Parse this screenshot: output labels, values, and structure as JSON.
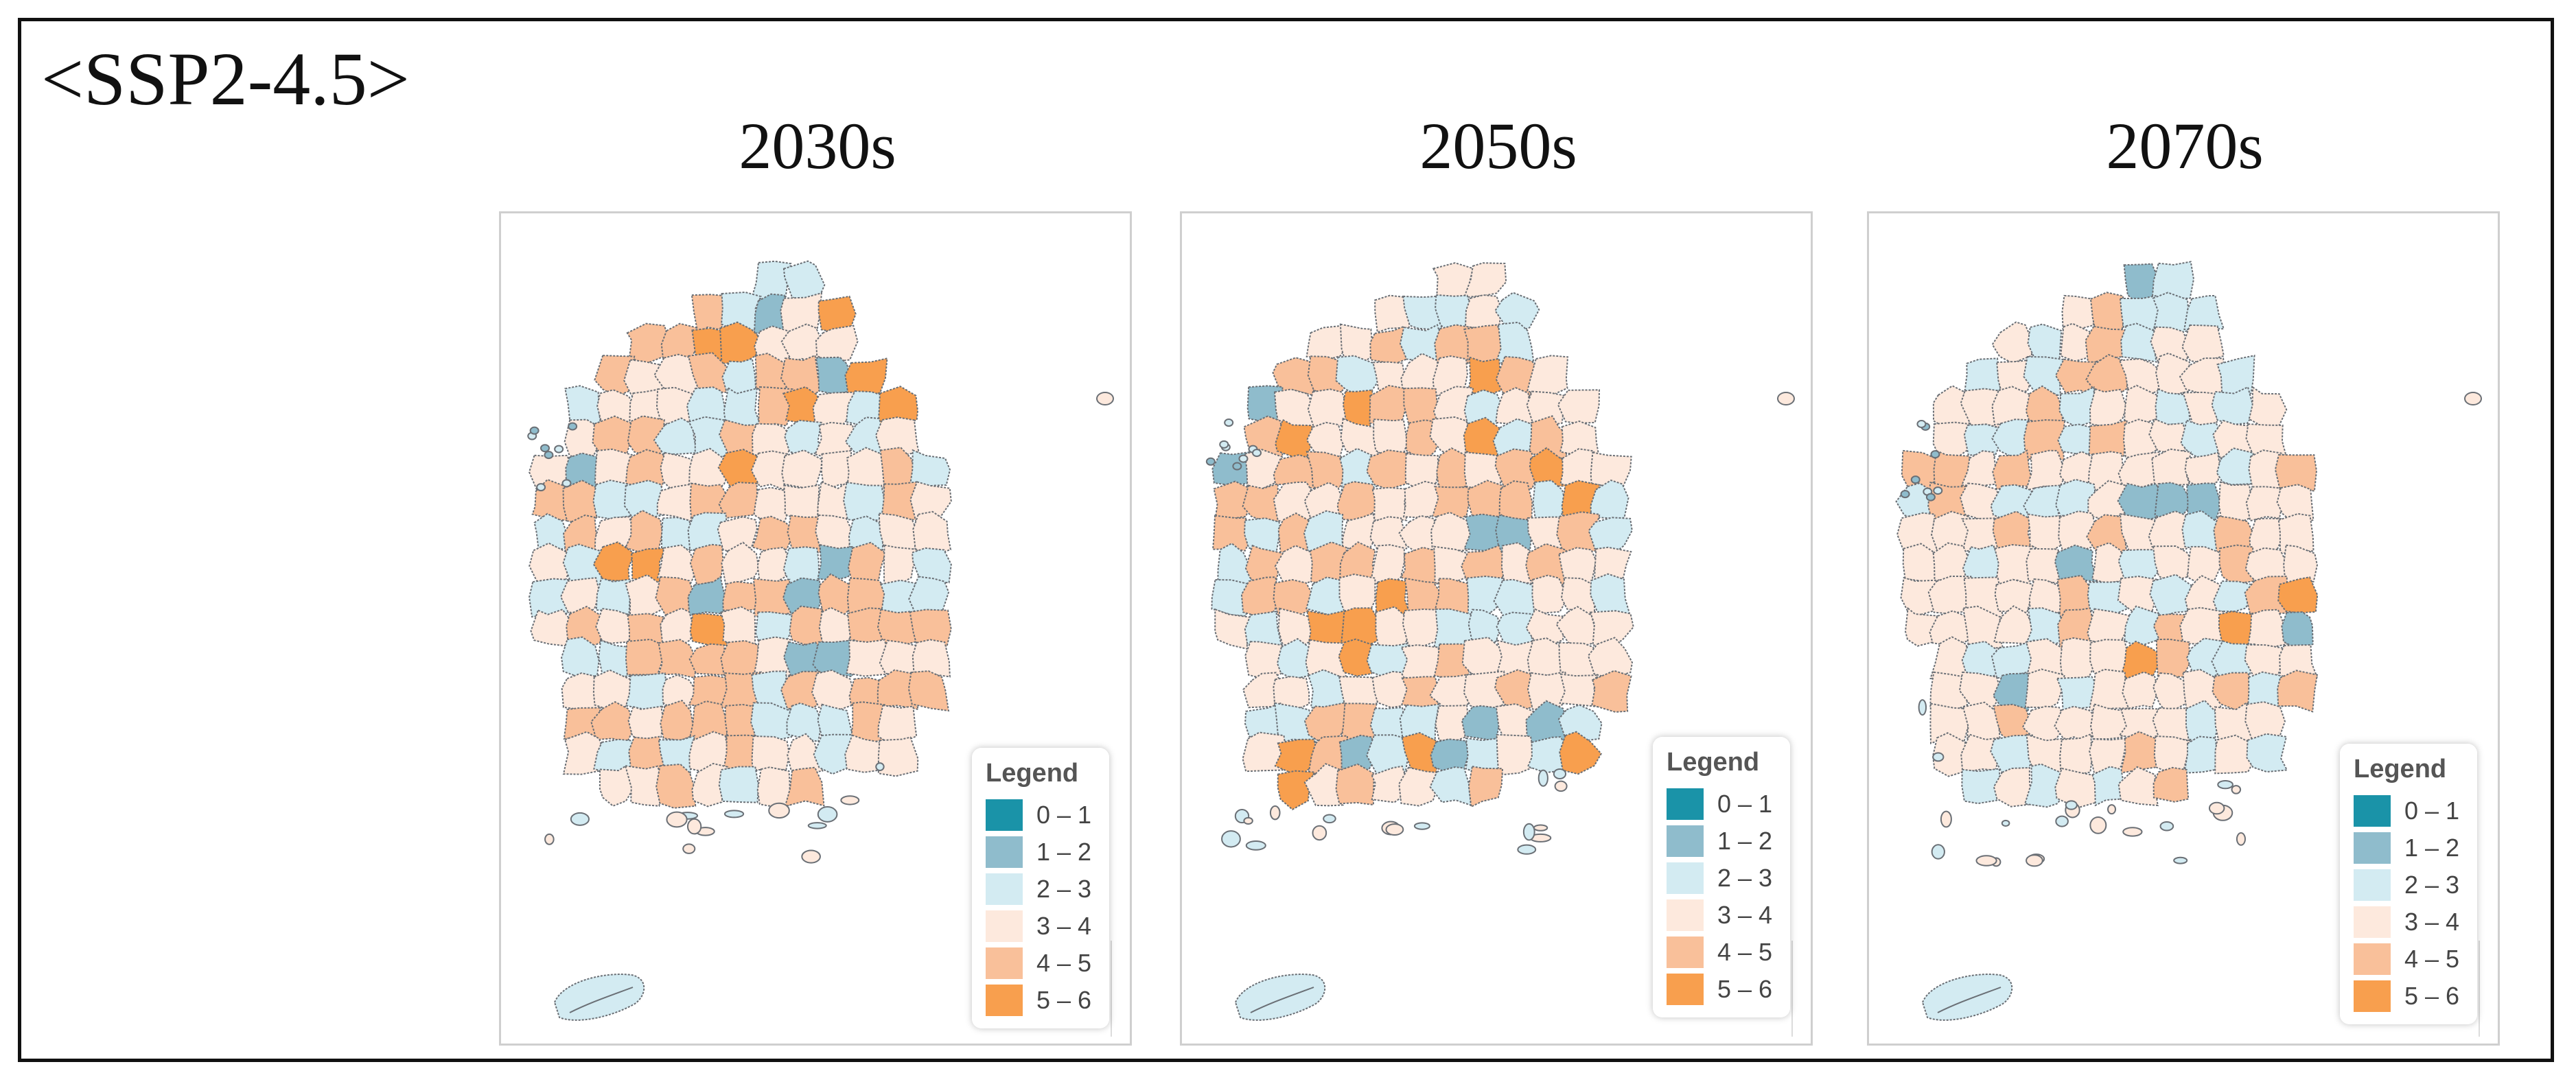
{
  "scenario_label": "<SSP2-4.5>",
  "colors": {
    "0-1": "#1a93a8",
    "1-2": "#8fbccc",
    "2-3": "#d3ebf2",
    "3-4": "#fde9dd",
    "4-5": "#f9c09a",
    "5-6": "#f89f4e",
    "border": "#6a6f75"
  },
  "legend": {
    "title": "Legend",
    "classes": [
      {
        "label": "0 – 1",
        "color_key": "0-1"
      },
      {
        "label": "1 – 2",
        "color_key": "1-2"
      },
      {
        "label": "2 – 3",
        "color_key": "2-3"
      },
      {
        "label": "3 – 4",
        "color_key": "3-4"
      },
      {
        "label": "4 – 5",
        "color_key": "4-5"
      },
      {
        "label": "5 – 6",
        "color_key": "5-6"
      }
    ]
  },
  "panels": [
    {
      "period": "2030s",
      "dominant_classes": [
        "3-4",
        "4-5",
        "2-3"
      ],
      "hotspot_classes": [
        "5-6",
        "1-2"
      ]
    },
    {
      "period": "2050s",
      "dominant_classes": [
        "3-4",
        "4-5",
        "2-3"
      ],
      "hotspot_classes": [
        "5-6",
        "1-2"
      ]
    },
    {
      "period": "2070s",
      "dominant_classes": [
        "3-4",
        "2-3",
        "4-5"
      ],
      "hotspot_classes": [
        "5-6",
        "1-2"
      ]
    }
  ]
}
